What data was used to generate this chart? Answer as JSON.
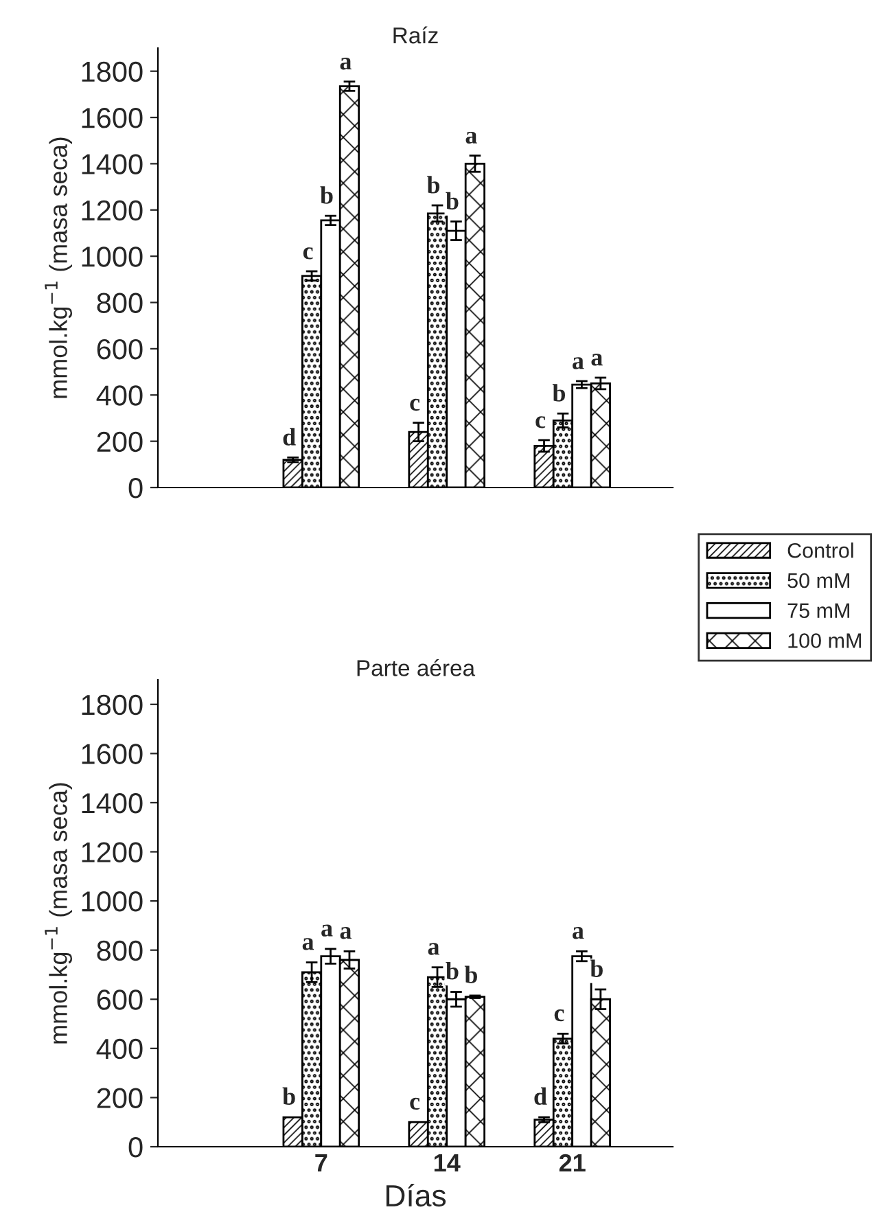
{
  "chart_data": [
    {
      "type": "bar",
      "title": "Raíz",
      "ylabel": "mmol.kg$^{−1}$ (masa seca)",
      "categories": [
        "7",
        "14",
        "21"
      ],
      "tick_labels": "y",
      "ylim": [
        0,
        1900
      ],
      "yticks": [
        0,
        200,
        400,
        600,
        800,
        1000,
        1200,
        1400,
        1600,
        1800
      ],
      "grid": false,
      "legend": "right",
      "series": [
        {
          "name": "Control",
          "color": "#000000",
          "values": [
            120,
            240,
            180
          ],
          "errors": [
            10,
            40,
            25
          ],
          "value_labels": [
            "d",
            "c",
            "c"
          ]
        },
        {
          "name": "50 mM",
          "color": "#000000",
          "values": [
            915,
            1185,
            290
          ],
          "errors": [
            20,
            35,
            30
          ],
          "value_labels": [
            "c",
            "b",
            "b"
          ]
        },
        {
          "name": "75 mM",
          "color": "#ffffff",
          "values": [
            1155,
            1110,
            445
          ],
          "errors": [
            20,
            40,
            15
          ],
          "value_labels": [
            "b",
            "b",
            "a"
          ]
        },
        {
          "name": "100 mM",
          "color": "#000000",
          "values": [
            1735,
            1400,
            450
          ],
          "errors": [
            20,
            35,
            25
          ],
          "value_labels": [
            "a",
            "a",
            "a"
          ]
        }
      ]
    },
    {
      "type": "bar",
      "title": "Parte aérea",
      "ylabel": "mmol.kg$^{−1}$ (masa seca)",
      "xlabel": "Días",
      "categories": [
        "7",
        "14",
        "21"
      ],
      "ylim": [
        0,
        1900
      ],
      "yticks": [
        0,
        200,
        400,
        600,
        800,
        1000,
        1200,
        1400,
        1600,
        1800
      ],
      "grid": false,
      "legend": false,
      "series": [
        {
          "color": "#000000",
          "values": [
            120,
            100,
            110
          ],
          "errors": [
            null,
            null,
            10
          ],
          "value_labels": [
            "b",
            "c",
            "d"
          ]
        },
        {
          "color": "#000000",
          "values": [
            710,
            690,
            440
          ],
          "errors": [
            40,
            40,
            20
          ],
          "value_labels": [
            "a",
            "a",
            "c"
          ]
        },
        {
          "color": "#ffffff",
          "values": [
            775,
            600,
            775
          ],
          "errors": [
            30,
            30,
            20
          ],
          "value_labels": [
            "a",
            "b",
            "a"
          ]
        },
        {
          "color": "#000000",
          "values": [
            760,
            610,
            600
          ],
          "errors": [
            35,
            5,
            40
          ],
          "value_labels": [
            "a",
            "b",
            "b"
          ]
        }
      ]
    }
  ]
}
